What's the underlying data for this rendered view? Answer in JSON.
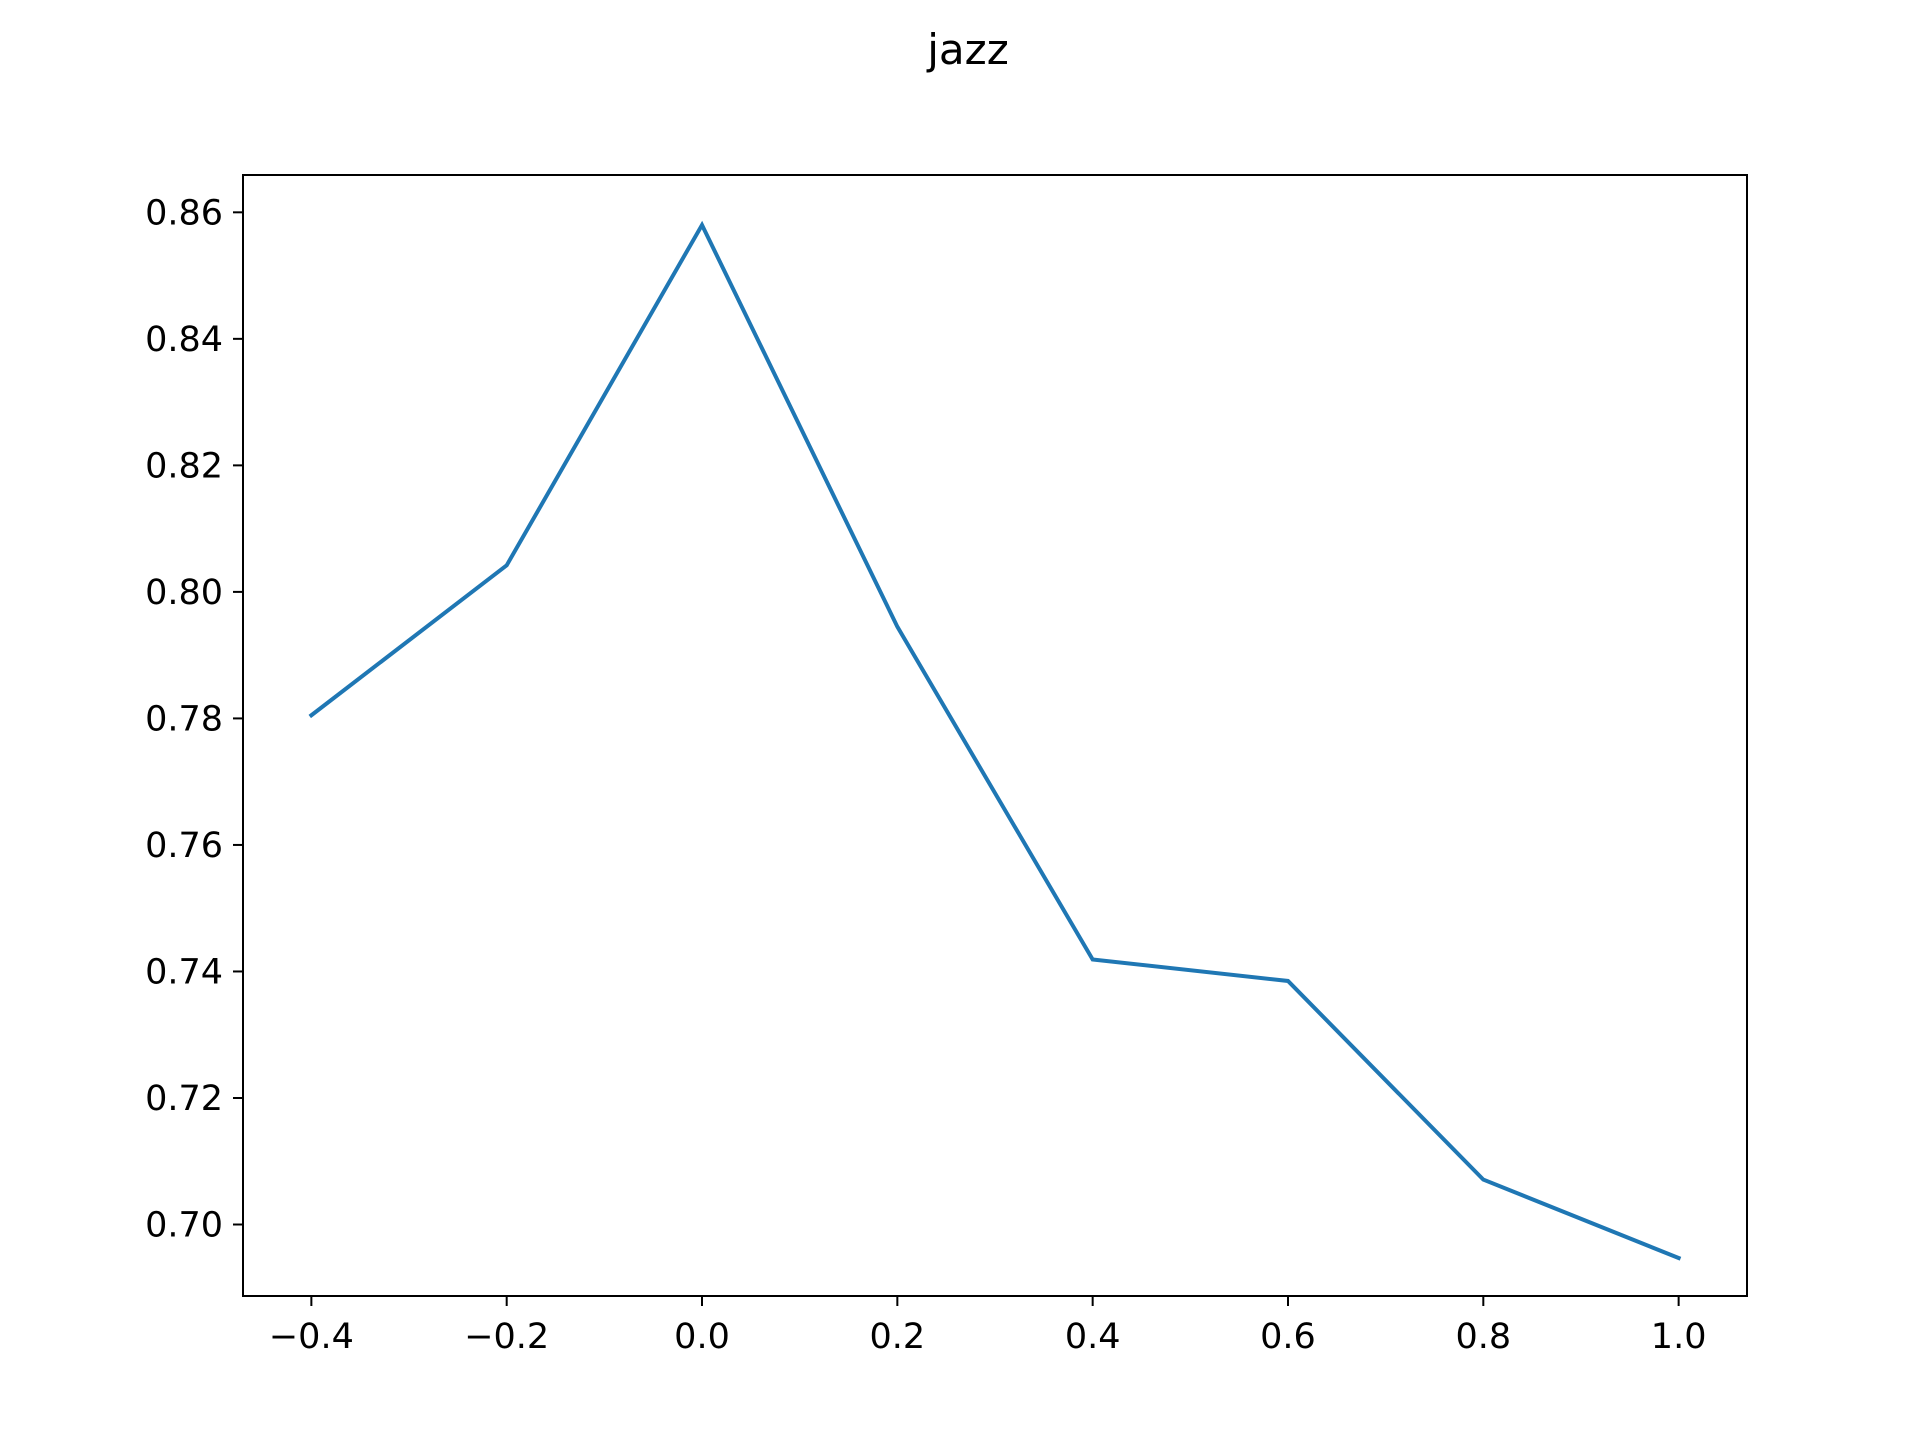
{
  "chart_data": {
    "type": "line",
    "title": "jazz",
    "xlabel": "",
    "ylabel": "",
    "xlim": [
      -0.47,
      1.07
    ],
    "ylim": [
      0.6887,
      0.8659
    ],
    "xticks": [
      -0.4,
      -0.2,
      0.0,
      0.2,
      0.4,
      0.6,
      0.8,
      1.0
    ],
    "xtick_labels": [
      "−0.4",
      "−0.2",
      "0.0",
      "0.2",
      "0.4",
      "0.6",
      "0.8",
      "1.0"
    ],
    "yticks": [
      0.7,
      0.72,
      0.74,
      0.76,
      0.78,
      0.8,
      0.82,
      0.84,
      0.86
    ],
    "ytick_labels": [
      "0.70",
      "0.72",
      "0.74",
      "0.76",
      "0.78",
      "0.80",
      "0.82",
      "0.84",
      "0.86"
    ],
    "grid": false,
    "series": [
      {
        "color": "#1f77b4",
        "x": [
          -0.4,
          -0.2,
          0.0,
          0.2,
          0.4,
          0.6,
          0.8,
          1.0
        ],
        "y": [
          0.7805,
          0.8042,
          0.858,
          0.7945,
          0.7419,
          0.7385,
          0.7071,
          0.6947
        ]
      }
    ]
  }
}
